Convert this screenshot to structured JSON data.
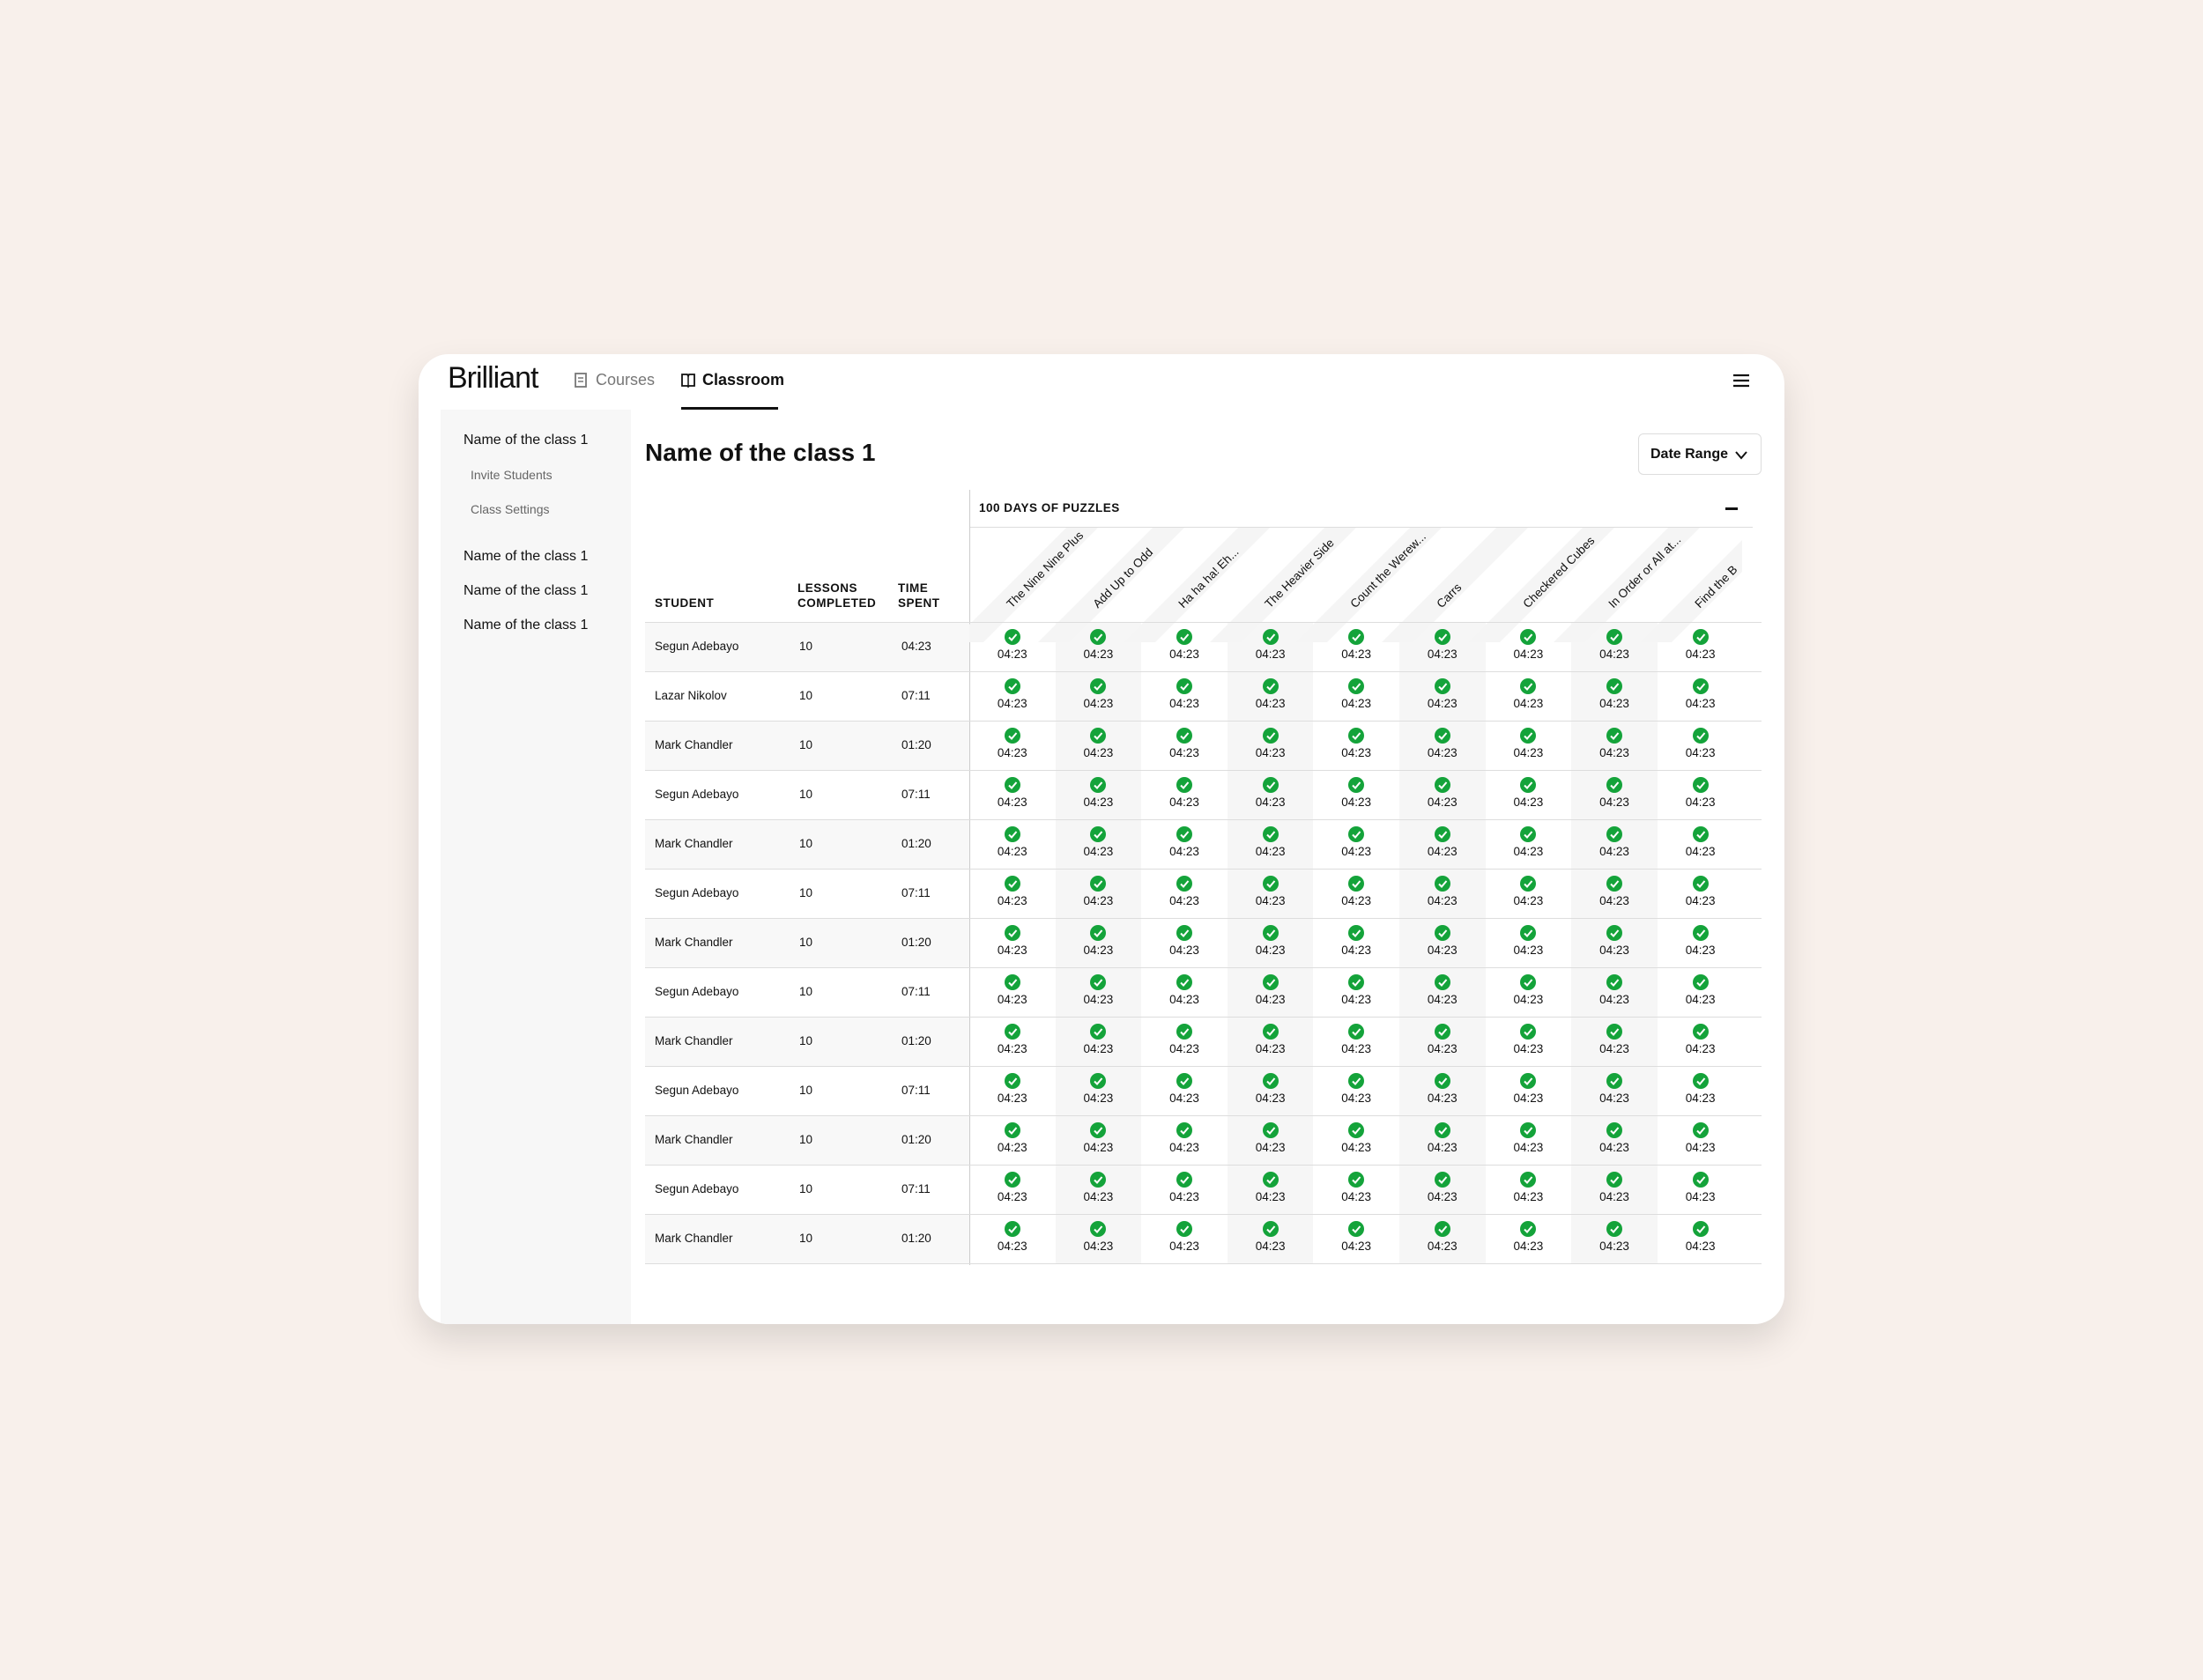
{
  "header": {
    "logo": "Brilliant",
    "nav": [
      "Courses",
      "Classroom"
    ]
  },
  "sidebar": {
    "classes": [
      {
        "name": "Name of the class 1",
        "links": [
          "Invite Students",
          "Class Settings"
        ]
      },
      {
        "name": "Name of the class 1"
      },
      {
        "name": "Name of the class 1"
      },
      {
        "name": "Name of the class 1"
      }
    ]
  },
  "title": "Name of the class 1",
  "date_range": "Date Range",
  "table": {
    "columns": [
      "STUDENT",
      "LESSONS COMPLETED",
      "TIME SPENT"
    ],
    "group": "100 DAYS OF PUZZLES",
    "puzzles": [
      "The Nine Nine Plus",
      "Add Up to Odd",
      "Ha ha ha! Eh...",
      "The Heavier Side",
      "Count the Werew...",
      "Carrs",
      "Checkered Cubes",
      "In Order or All at...",
      "Find the B"
    ],
    "rows": [
      {
        "student": "Segun Adebayo",
        "lessons": 10,
        "time": "04:23",
        "cells": [
          "04:23",
          "04:23",
          "04:23",
          "04:23",
          "04:23",
          "04:23",
          "04:23",
          "04:23",
          "04:23"
        ]
      },
      {
        "student": "Lazar Nikolov",
        "lessons": 10,
        "time": "07:11",
        "cells": [
          "04:23",
          "04:23",
          "04:23",
          "04:23",
          "04:23",
          "04:23",
          "04:23",
          "04:23",
          "04:23"
        ]
      },
      {
        "student": "Mark Chandler",
        "lessons": 10,
        "time": "01:20",
        "cells": [
          "04:23",
          "04:23",
          "04:23",
          "04:23",
          "04:23",
          "04:23",
          "04:23",
          "04:23",
          "04:23"
        ]
      },
      {
        "student": "Segun Adebayo",
        "lessons": 10,
        "time": "07:11",
        "cells": [
          "04:23",
          "04:23",
          "04:23",
          "04:23",
          "04:23",
          "04:23",
          "04:23",
          "04:23",
          "04:23"
        ]
      },
      {
        "student": "Mark Chandler",
        "lessons": 10,
        "time": "01:20",
        "cells": [
          "04:23",
          "04:23",
          "04:23",
          "04:23",
          "04:23",
          "04:23",
          "04:23",
          "04:23",
          "04:23"
        ]
      },
      {
        "student": "Segun Adebayo",
        "lessons": 10,
        "time": "07:11",
        "cells": [
          "04:23",
          "04:23",
          "04:23",
          "04:23",
          "04:23",
          "04:23",
          "04:23",
          "04:23",
          "04:23"
        ]
      },
      {
        "student": "Mark Chandler",
        "lessons": 10,
        "time": "01:20",
        "cells": [
          "04:23",
          "04:23",
          "04:23",
          "04:23",
          "04:23",
          "04:23",
          "04:23",
          "04:23",
          "04:23"
        ]
      },
      {
        "student": "Segun Adebayo",
        "lessons": 10,
        "time": "07:11",
        "cells": [
          "04:23",
          "04:23",
          "04:23",
          "04:23",
          "04:23",
          "04:23",
          "04:23",
          "04:23",
          "04:23"
        ]
      },
      {
        "student": "Mark Chandler",
        "lessons": 10,
        "time": "01:20",
        "cells": [
          "04:23",
          "04:23",
          "04:23",
          "04:23",
          "04:23",
          "04:23",
          "04:23",
          "04:23",
          "04:23"
        ]
      },
      {
        "student": "Segun Adebayo",
        "lessons": 10,
        "time": "07:11",
        "cells": [
          "04:23",
          "04:23",
          "04:23",
          "04:23",
          "04:23",
          "04:23",
          "04:23",
          "04:23",
          "04:23"
        ]
      },
      {
        "student": "Mark Chandler",
        "lessons": 10,
        "time": "01:20",
        "cells": [
          "04:23",
          "04:23",
          "04:23",
          "04:23",
          "04:23",
          "04:23",
          "04:23",
          "04:23",
          "04:23"
        ]
      },
      {
        "student": "Segun Adebayo",
        "lessons": 10,
        "time": "07:11",
        "cells": [
          "04:23",
          "04:23",
          "04:23",
          "04:23",
          "04:23",
          "04:23",
          "04:23",
          "04:23",
          "04:23"
        ]
      },
      {
        "student": "Mark Chandler",
        "lessons": 10,
        "time": "01:20",
        "cells": [
          "04:23",
          "04:23",
          "04:23",
          "04:23",
          "04:23",
          "04:23",
          "04:23",
          "04:23",
          "04:23"
        ]
      }
    ]
  }
}
